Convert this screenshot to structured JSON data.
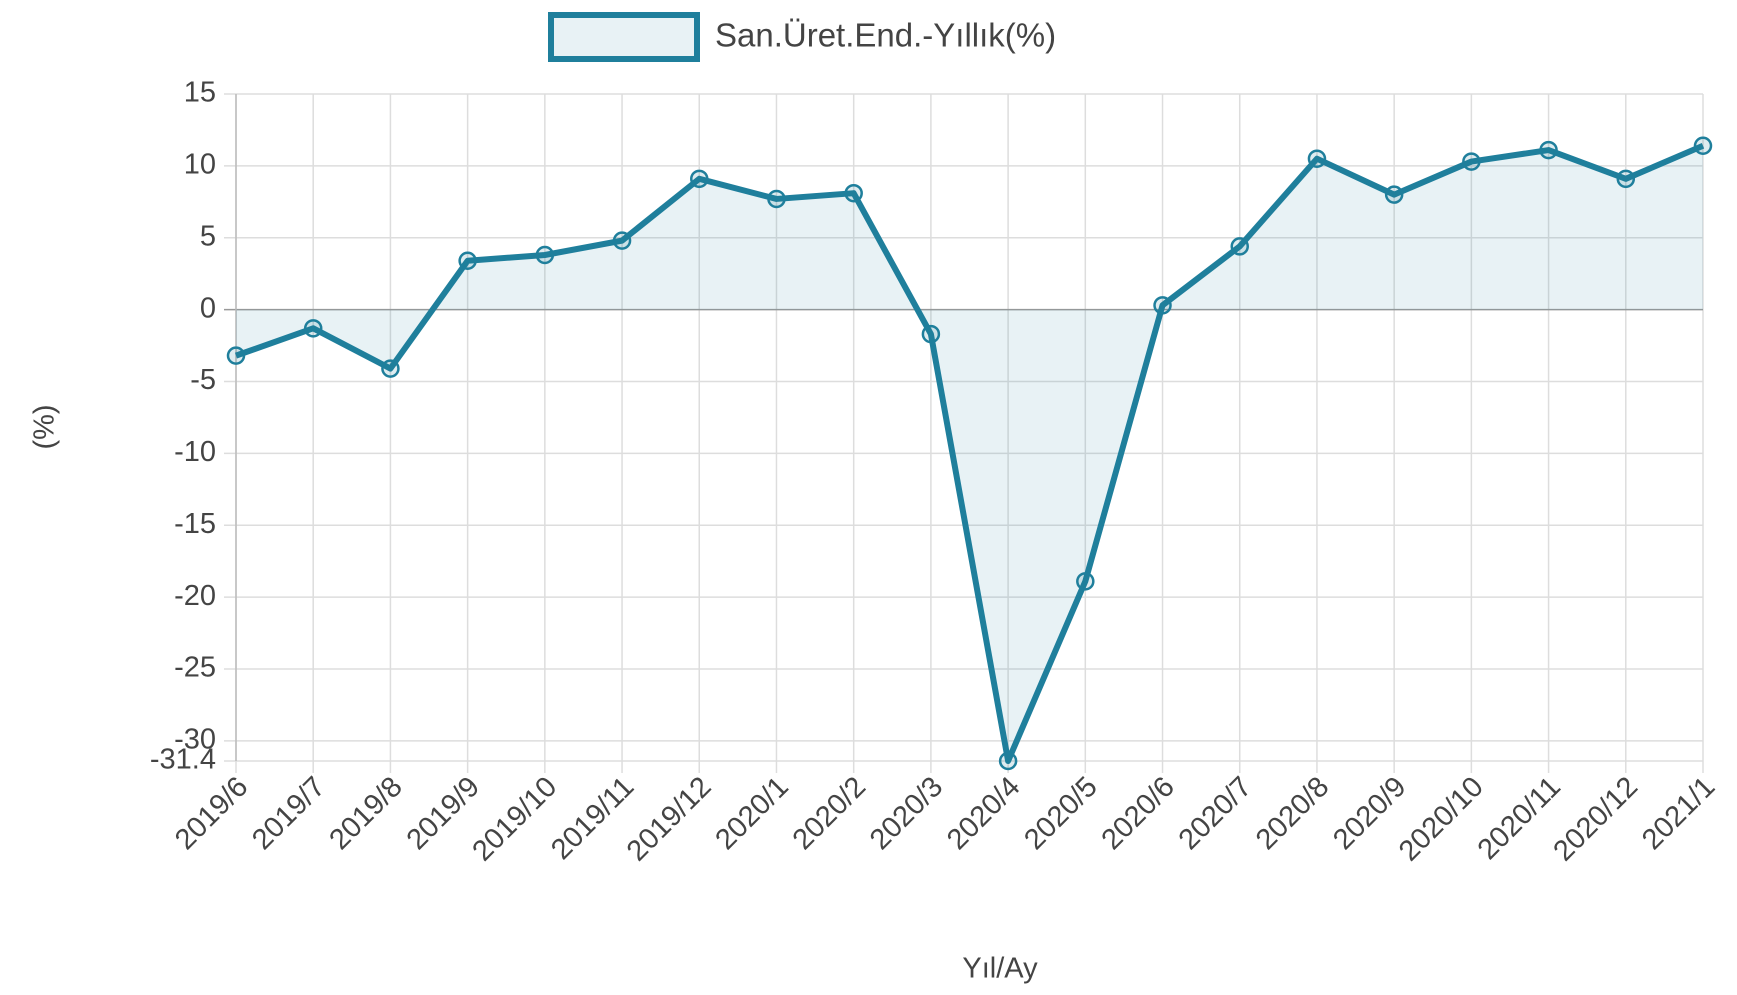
{
  "chart_data": {
    "type": "line",
    "series": [
      {
        "name": "San.Üret.End.-Yıllık(%)",
        "color": "#1f7f9c",
        "values": [
          -3.2,
          -1.3,
          -4.1,
          3.4,
          3.8,
          4.8,
          9.1,
          7.7,
          8.1,
          -1.7,
          -31.4,
          -18.9,
          0.3,
          4.4,
          10.5,
          8.0,
          10.3,
          11.1,
          9.1,
          11.4
        ]
      }
    ],
    "categories": [
      "2019/6",
      "2019/7",
      "2019/8",
      "2019/9",
      "2019/10",
      "2019/11",
      "2019/12",
      "2020/1",
      "2020/2",
      "2020/3",
      "2020/4",
      "2020/5",
      "2020/6",
      "2020/7",
      "2020/8",
      "2020/9",
      "2020/10",
      "2020/11",
      "2020/12",
      "2021/1"
    ],
    "x_label": "Yıl/Ay",
    "y_label": "(%)",
    "ylim": [
      -31.4,
      15
    ],
    "yticks": [
      15,
      10,
      5,
      0,
      -5,
      -10,
      -15,
      -20,
      -25,
      -30,
      -31.4
    ],
    "grid": true,
    "fill": true,
    "legend": "top"
  }
}
